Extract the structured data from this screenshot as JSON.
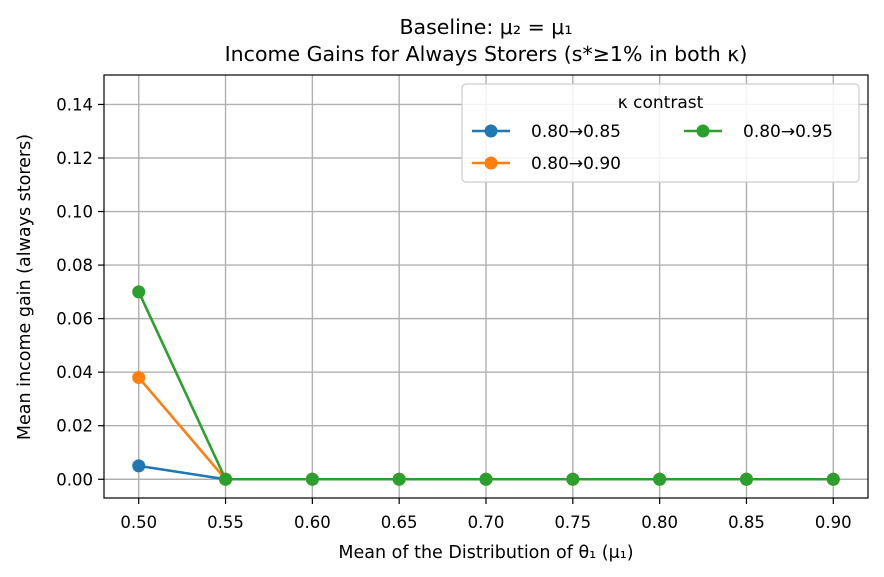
{
  "chart_data": {
    "type": "line",
    "title": "Baseline: μ₂ = μ₁",
    "subtitle": "Income Gains for Always Storers (s*≥1% in both κ)",
    "xlabel": "Mean of the Distribution of θ₁ (μ₁)",
    "ylabel": "Mean income gain (always storers)",
    "x": [
      0.5,
      0.55,
      0.6,
      0.65,
      0.7,
      0.75,
      0.8,
      0.85,
      0.9
    ],
    "xticks": [
      "0.50",
      "0.55",
      "0.60",
      "0.65",
      "0.70",
      "0.75",
      "0.80",
      "0.85",
      "0.90"
    ],
    "yticks": [
      "0.00",
      "0.02",
      "0.04",
      "0.06",
      "0.08",
      "0.10",
      "0.12",
      "0.14"
    ],
    "ytick_values": [
      0,
      0.02,
      0.04,
      0.06,
      0.08,
      0.1,
      0.12,
      0.14
    ],
    "xlim": [
      0.48,
      0.92
    ],
    "ylim": [
      -0.007,
      0.151
    ],
    "grid": true,
    "legend": {
      "title": "κ contrast",
      "placement": "top-right",
      "columns": 2
    },
    "series": [
      {
        "name": "0.80→0.85",
        "color": "#1f77b4",
        "values": [
          0.005,
          0,
          0,
          0,
          0,
          0,
          0,
          0,
          0
        ]
      },
      {
        "name": "0.80→0.90",
        "color": "#ff7f0e",
        "values": [
          0.038,
          0,
          0,
          0,
          0,
          0,
          0,
          0,
          0
        ]
      },
      {
        "name": "0.80→0.95",
        "color": "#2ca02c",
        "values": [
          0.07,
          0,
          0,
          0,
          0,
          0,
          0,
          0,
          0
        ]
      }
    ]
  }
}
